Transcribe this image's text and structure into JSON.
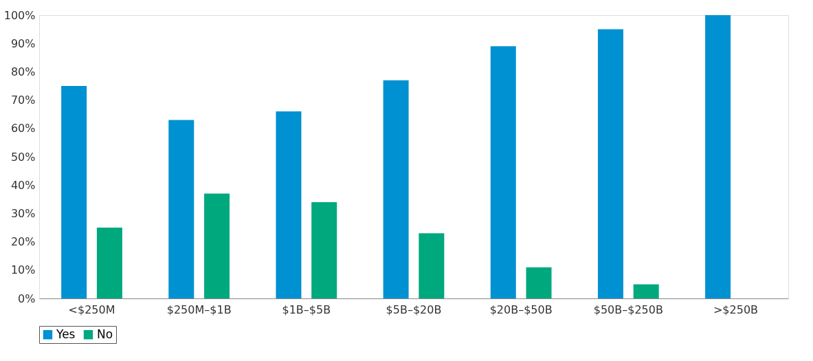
{
  "chart_data": {
    "type": "bar",
    "categories": [
      "<$250M",
      "$250M–$1B",
      "$1B–$5B",
      "$5B–$20B",
      "$20B–$50B",
      "$50B–$250B",
      ">$250B"
    ],
    "series": [
      {
        "name": "Yes",
        "color": "#0091d2",
        "values": [
          75,
          63,
          66,
          77,
          89,
          95,
          100
        ]
      },
      {
        "name": "No",
        "color": "#00a87e",
        "values": [
          25,
          37,
          34,
          23,
          11,
          5,
          0
        ]
      }
    ],
    "ylim": [
      0,
      100
    ],
    "yticks": [
      {
        "value": 0,
        "label": "0%"
      },
      {
        "value": 10,
        "label": "10%"
      },
      {
        "value": 20,
        "label": "20%"
      },
      {
        "value": 30,
        "label": "30%"
      },
      {
        "value": 40,
        "label": "40%"
      },
      {
        "value": 50,
        "label": "50%"
      },
      {
        "value": 60,
        "label": "60%"
      },
      {
        "value": 70,
        "label": "70%"
      },
      {
        "value": 80,
        "label": "80%"
      },
      {
        "value": 90,
        "label": "90%"
      },
      {
        "value": 100,
        "label": "100%"
      }
    ],
    "grid": false,
    "legend": "bottom"
  }
}
